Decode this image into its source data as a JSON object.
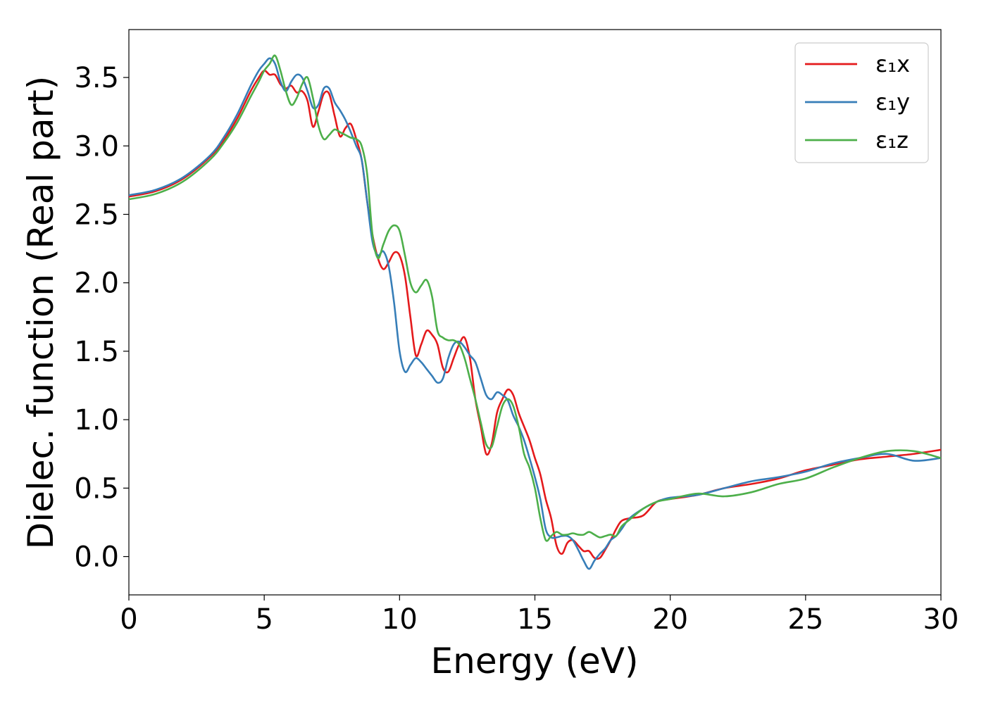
{
  "chart_data": {
    "type": "line",
    "xlabel": "Energy (eV)",
    "ylabel": "Dielec. function (Real part)",
    "xlim": [
      0,
      30
    ],
    "ylim": [
      -0.28,
      3.85
    ],
    "xticks": [
      0,
      5,
      10,
      15,
      20,
      25,
      30
    ],
    "yticks": [
      0.0,
      0.5,
      1.0,
      1.5,
      2.0,
      2.5,
      3.0,
      3.5
    ],
    "xtick_labels": [
      "0",
      "5",
      "10",
      "15",
      "20",
      "25",
      "30"
    ],
    "ytick_labels": [
      "0.0",
      "0.5",
      "1.0",
      "1.5",
      "2.0",
      "2.5",
      "3.0",
      "3.5"
    ],
    "grid": false,
    "legend_position": "top-right",
    "series": [
      {
        "name": "ε₁x",
        "color": "#e41a1c",
        "x": [
          0,
          1,
          2,
          3,
          3.5,
          4,
          4.5,
          4.8,
          5.0,
          5.2,
          5.4,
          5.6,
          5.8,
          6.0,
          6.2,
          6.4,
          6.6,
          6.8,
          7.0,
          7.2,
          7.4,
          7.6,
          7.8,
          8.0,
          8.2,
          8.4,
          8.6,
          8.8,
          9.0,
          9.2,
          9.4,
          9.6,
          9.8,
          10.0,
          10.2,
          10.4,
          10.6,
          10.8,
          11.0,
          11.2,
          11.4,
          11.6,
          11.8,
          12.0,
          12.2,
          12.4,
          12.6,
          12.8,
          13.0,
          13.2,
          13.4,
          13.6,
          13.8,
          14.0,
          14.2,
          14.4,
          14.6,
          14.8,
          15.0,
          15.2,
          15.4,
          15.6,
          15.8,
          16.0,
          16.2,
          16.4,
          16.6,
          16.8,
          17.0,
          17.2,
          17.4,
          17.6,
          17.8,
          18.0,
          18.2,
          18.5,
          19.0,
          19.5,
          20.0,
          21.0,
          22.0,
          23.0,
          24.0,
          25.0,
          26.0,
          27.0,
          28.0,
          29.0,
          30.0
        ],
        "y": [
          2.63,
          2.67,
          2.76,
          2.92,
          3.04,
          3.2,
          3.4,
          3.5,
          3.55,
          3.52,
          3.52,
          3.45,
          3.42,
          3.44,
          3.39,
          3.4,
          3.33,
          3.14,
          3.25,
          3.38,
          3.38,
          3.22,
          3.07,
          3.13,
          3.16,
          3.05,
          2.9,
          2.6,
          2.35,
          2.18,
          2.1,
          2.15,
          2.22,
          2.2,
          2.05,
          1.75,
          1.47,
          1.55,
          1.65,
          1.62,
          1.55,
          1.38,
          1.35,
          1.45,
          1.55,
          1.6,
          1.45,
          1.15,
          0.95,
          0.75,
          0.82,
          1.05,
          1.15,
          1.22,
          1.18,
          1.05,
          0.95,
          0.85,
          0.72,
          0.6,
          0.42,
          0.28,
          0.08,
          0.02,
          0.1,
          0.12,
          0.08,
          0.04,
          0.04,
          -0.01,
          -0.01,
          0.05,
          0.12,
          0.2,
          0.26,
          0.28,
          0.3,
          0.4,
          0.42,
          0.45,
          0.5,
          0.53,
          0.57,
          0.63,
          0.67,
          0.71,
          0.73,
          0.75,
          0.78
        ]
      },
      {
        "name": "ε₁y",
        "color": "#377eb8",
        "x": [
          0,
          1,
          2,
          3,
          3.5,
          4,
          4.5,
          4.8,
          5.0,
          5.2,
          5.4,
          5.6,
          5.8,
          6.0,
          6.2,
          6.4,
          6.6,
          6.8,
          7.0,
          7.2,
          7.4,
          7.6,
          7.8,
          8.0,
          8.2,
          8.4,
          8.6,
          8.8,
          9.0,
          9.2,
          9.4,
          9.6,
          9.8,
          10.0,
          10.2,
          10.4,
          10.6,
          10.8,
          11.0,
          11.2,
          11.4,
          11.6,
          11.8,
          12.0,
          12.2,
          12.4,
          12.6,
          12.8,
          13.0,
          13.2,
          13.4,
          13.6,
          13.8,
          14.0,
          14.2,
          14.4,
          14.6,
          14.8,
          15.0,
          15.2,
          15.4,
          15.6,
          15.8,
          16.0,
          16.2,
          16.4,
          16.6,
          16.8,
          17.0,
          17.2,
          17.4,
          17.6,
          17.8,
          18.0,
          18.2,
          18.5,
          19.0,
          19.5,
          20.0,
          21.0,
          22.0,
          23.0,
          24.0,
          25.0,
          26.0,
          27.0,
          28.0,
          29.0,
          30.0
        ],
        "y": [
          2.64,
          2.68,
          2.77,
          2.93,
          3.06,
          3.23,
          3.44,
          3.55,
          3.6,
          3.64,
          3.6,
          3.47,
          3.4,
          3.47,
          3.52,
          3.5,
          3.4,
          3.28,
          3.3,
          3.42,
          3.42,
          3.32,
          3.26,
          3.19,
          3.1,
          3.0,
          2.9,
          2.6,
          2.3,
          2.2,
          2.23,
          2.12,
          1.85,
          1.5,
          1.35,
          1.4,
          1.45,
          1.42,
          1.37,
          1.32,
          1.27,
          1.3,
          1.45,
          1.55,
          1.57,
          1.53,
          1.47,
          1.42,
          1.3,
          1.18,
          1.15,
          1.2,
          1.18,
          1.14,
          1.03,
          0.95,
          0.85,
          0.72,
          0.58,
          0.42,
          0.2,
          0.14,
          0.14,
          0.15,
          0.15,
          0.12,
          0.05,
          -0.03,
          -0.09,
          -0.03,
          0.02,
          0.06,
          0.12,
          0.15,
          0.2,
          0.28,
          0.35,
          0.4,
          0.43,
          0.45,
          0.5,
          0.55,
          0.58,
          0.62,
          0.68,
          0.72,
          0.75,
          0.7,
          0.72
        ]
      },
      {
        "name": "ε₁z",
        "color": "#4daf4a",
        "x": [
          0,
          1,
          2,
          3,
          3.5,
          4,
          4.5,
          4.8,
          5.0,
          5.2,
          5.4,
          5.6,
          5.8,
          6.0,
          6.2,
          6.4,
          6.6,
          6.8,
          7.0,
          7.2,
          7.4,
          7.6,
          7.8,
          8.0,
          8.2,
          8.4,
          8.6,
          8.8,
          9.0,
          9.2,
          9.4,
          9.6,
          9.8,
          10.0,
          10.2,
          10.4,
          10.6,
          10.8,
          11.0,
          11.2,
          11.4,
          11.6,
          11.8,
          12.0,
          12.2,
          12.4,
          12.6,
          12.8,
          13.0,
          13.2,
          13.4,
          13.6,
          13.8,
          14.0,
          14.2,
          14.4,
          14.6,
          14.8,
          15.0,
          15.2,
          15.4,
          15.6,
          15.8,
          16.0,
          16.2,
          16.4,
          16.6,
          16.8,
          17.0,
          17.2,
          17.4,
          17.6,
          17.8,
          18.0,
          18.2,
          18.5,
          19.0,
          19.5,
          20.0,
          21.0,
          22.0,
          23.0,
          24.0,
          25.0,
          26.0,
          27.0,
          28.0,
          29.0,
          30.0
        ],
        "y": [
          2.61,
          2.65,
          2.74,
          2.9,
          3.02,
          3.17,
          3.36,
          3.47,
          3.55,
          3.6,
          3.66,
          3.55,
          3.4,
          3.3,
          3.35,
          3.45,
          3.5,
          3.35,
          3.15,
          3.05,
          3.08,
          3.12,
          3.1,
          3.08,
          3.06,
          3.05,
          3.0,
          2.8,
          2.35,
          2.18,
          2.28,
          2.38,
          2.42,
          2.38,
          2.2,
          2.0,
          1.93,
          1.98,
          2.02,
          1.9,
          1.65,
          1.6,
          1.58,
          1.58,
          1.55,
          1.45,
          1.3,
          1.15,
          0.98,
          0.82,
          0.8,
          0.95,
          1.1,
          1.15,
          1.1,
          0.95,
          0.75,
          0.65,
          0.5,
          0.28,
          0.12,
          0.15,
          0.18,
          0.16,
          0.16,
          0.17,
          0.16,
          0.16,
          0.18,
          0.16,
          0.14,
          0.15,
          0.16,
          0.15,
          0.22,
          0.27,
          0.35,
          0.4,
          0.42,
          0.46,
          0.44,
          0.47,
          0.53,
          0.57,
          0.65,
          0.72,
          0.77,
          0.77,
          0.72
        ]
      }
    ]
  }
}
